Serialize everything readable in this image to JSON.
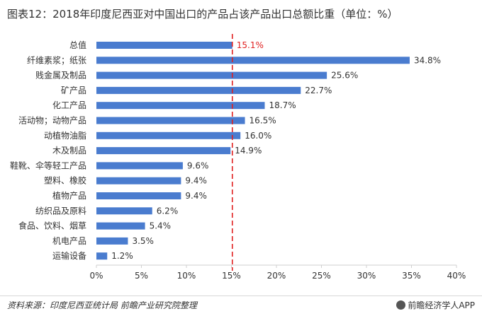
{
  "title": "图表12：2018年印度尼西亚对中国出口的产品占该产品出口总额比重（单位：%）",
  "source": "资料来源：印度尼西亚统计局 前瞻产业研究院整理",
  "brand": "前瞻经济学人APP",
  "colors": {
    "bar": "#4a7ccf",
    "reference_line": "#e02020",
    "highlight_label": "#e02020",
    "grid": "#cfcfcf"
  },
  "chart_data": {
    "type": "bar",
    "orientation": "horizontal",
    "categories": [
      "总值",
      "纤维素浆；纸张",
      "贱金属及制品",
      "矿产品",
      "化工产品",
      "活动物；动物产品",
      "动植物油脂",
      "木及制品",
      "鞋靴、伞等轻工产品",
      "塑料、橡胶",
      "植物产品",
      "纺织品及原料",
      "食品、饮料、烟草",
      "机电产品",
      "运输设备"
    ],
    "values": [
      15.1,
      34.8,
      25.6,
      22.7,
      18.7,
      16.5,
      16.0,
      14.9,
      9.6,
      9.4,
      9.4,
      6.2,
      5.4,
      3.5,
      1.2
    ],
    "value_labels": [
      "15.1%",
      "34.8%",
      "25.6%",
      "22.7%",
      "18.7%",
      "16.5%",
      "16.0%",
      "14.9%",
      "9.6%",
      "9.4%",
      "9.4%",
      "6.2%",
      "5.4%",
      "3.5%",
      "1.2%"
    ],
    "highlight_category": "总值",
    "reference_line": 15.1,
    "xlim": [
      0,
      40
    ],
    "xticks": [
      0,
      5,
      10,
      15,
      20,
      25,
      30,
      35,
      40
    ],
    "xtick_labels": [
      "0%",
      "5%",
      "10%",
      "15%",
      "20%",
      "25%",
      "30%",
      "35%",
      "40%"
    ],
    "xlabel": "",
    "ylabel": "",
    "grid": false,
    "legend": "none"
  }
}
